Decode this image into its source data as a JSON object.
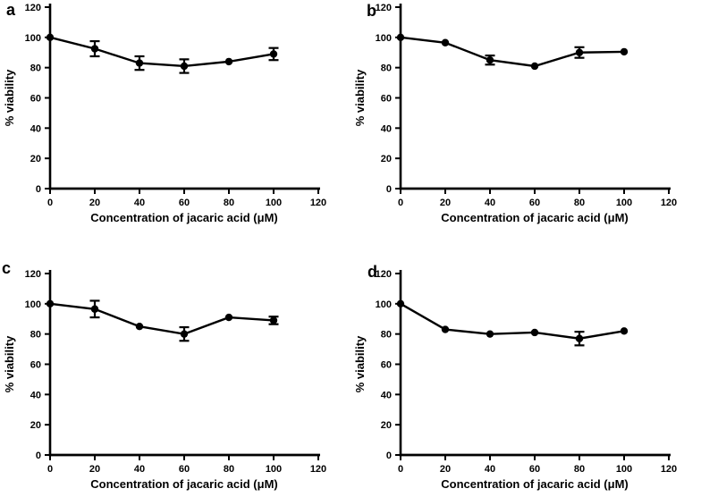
{
  "figure": {
    "background": "#ffffff",
    "ink_color": "#000000"
  },
  "chart_data": [
    {
      "type": "line",
      "panel": "a",
      "xlabel": "Concentration of jacaric acid (μM)",
      "ylabel": "% viability",
      "xlim": [
        0,
        120
      ],
      "ylim": [
        0,
        120
      ],
      "xticks": [
        0,
        20,
        40,
        60,
        80,
        100,
        120
      ],
      "yticks": [
        0,
        20,
        40,
        60,
        80,
        100,
        120
      ],
      "grid": false,
      "legend": "none",
      "marker": "filled-circle",
      "x": [
        0,
        20,
        40,
        60,
        80,
        100
      ],
      "y": [
        100,
        92.5,
        83,
        81,
        84,
        89
      ],
      "yerr": [
        0,
        5,
        4.5,
        4.5,
        0,
        4
      ]
    },
    {
      "type": "line",
      "panel": "b",
      "xlabel": "Concentration of jacaric acid (μM)",
      "ylabel": "% viability",
      "xlim": [
        0,
        120
      ],
      "ylim": [
        0,
        120
      ],
      "xticks": [
        0,
        20,
        40,
        60,
        80,
        100,
        120
      ],
      "yticks": [
        0,
        20,
        40,
        60,
        80,
        100,
        120
      ],
      "grid": false,
      "legend": "none",
      "marker": "filled-circle",
      "x": [
        0,
        20,
        40,
        60,
        80,
        100
      ],
      "y": [
        100,
        96.5,
        85,
        81,
        90,
        90.5
      ],
      "yerr": [
        0,
        0,
        3,
        0,
        3.5,
        0
      ]
    },
    {
      "type": "line",
      "panel": "c",
      "xlabel": "Concentration of jacaric acid (μM)",
      "ylabel": "% viability",
      "xlim": [
        0,
        120
      ],
      "ylim": [
        0,
        120
      ],
      "xticks": [
        0,
        20,
        40,
        60,
        80,
        100,
        120
      ],
      "yticks": [
        0,
        20,
        40,
        60,
        80,
        100,
        120
      ],
      "grid": false,
      "legend": "none",
      "marker": "filled-circle",
      "x": [
        0,
        20,
        40,
        60,
        80,
        100
      ],
      "y": [
        100,
        96.5,
        85,
        80,
        91,
        89
      ],
      "yerr": [
        0,
        5.5,
        0,
        4.5,
        0,
        2.5
      ]
    },
    {
      "type": "line",
      "panel": "d",
      "xlabel": "Concentration of jacaric acid (μM)",
      "ylabel": "% viability",
      "xlim": [
        0,
        120
      ],
      "ylim": [
        0,
        120
      ],
      "xticks": [
        0,
        20,
        40,
        60,
        80,
        100,
        120
      ],
      "yticks": [
        0,
        20,
        40,
        60,
        80,
        100,
        120
      ],
      "grid": false,
      "legend": "none",
      "marker": "filled-circle",
      "x": [
        0,
        20,
        40,
        60,
        80,
        100
      ],
      "y": [
        100,
        83,
        80,
        81,
        77,
        82
      ],
      "yerr": [
        0,
        0,
        0,
        0,
        4.5,
        0
      ]
    }
  ]
}
